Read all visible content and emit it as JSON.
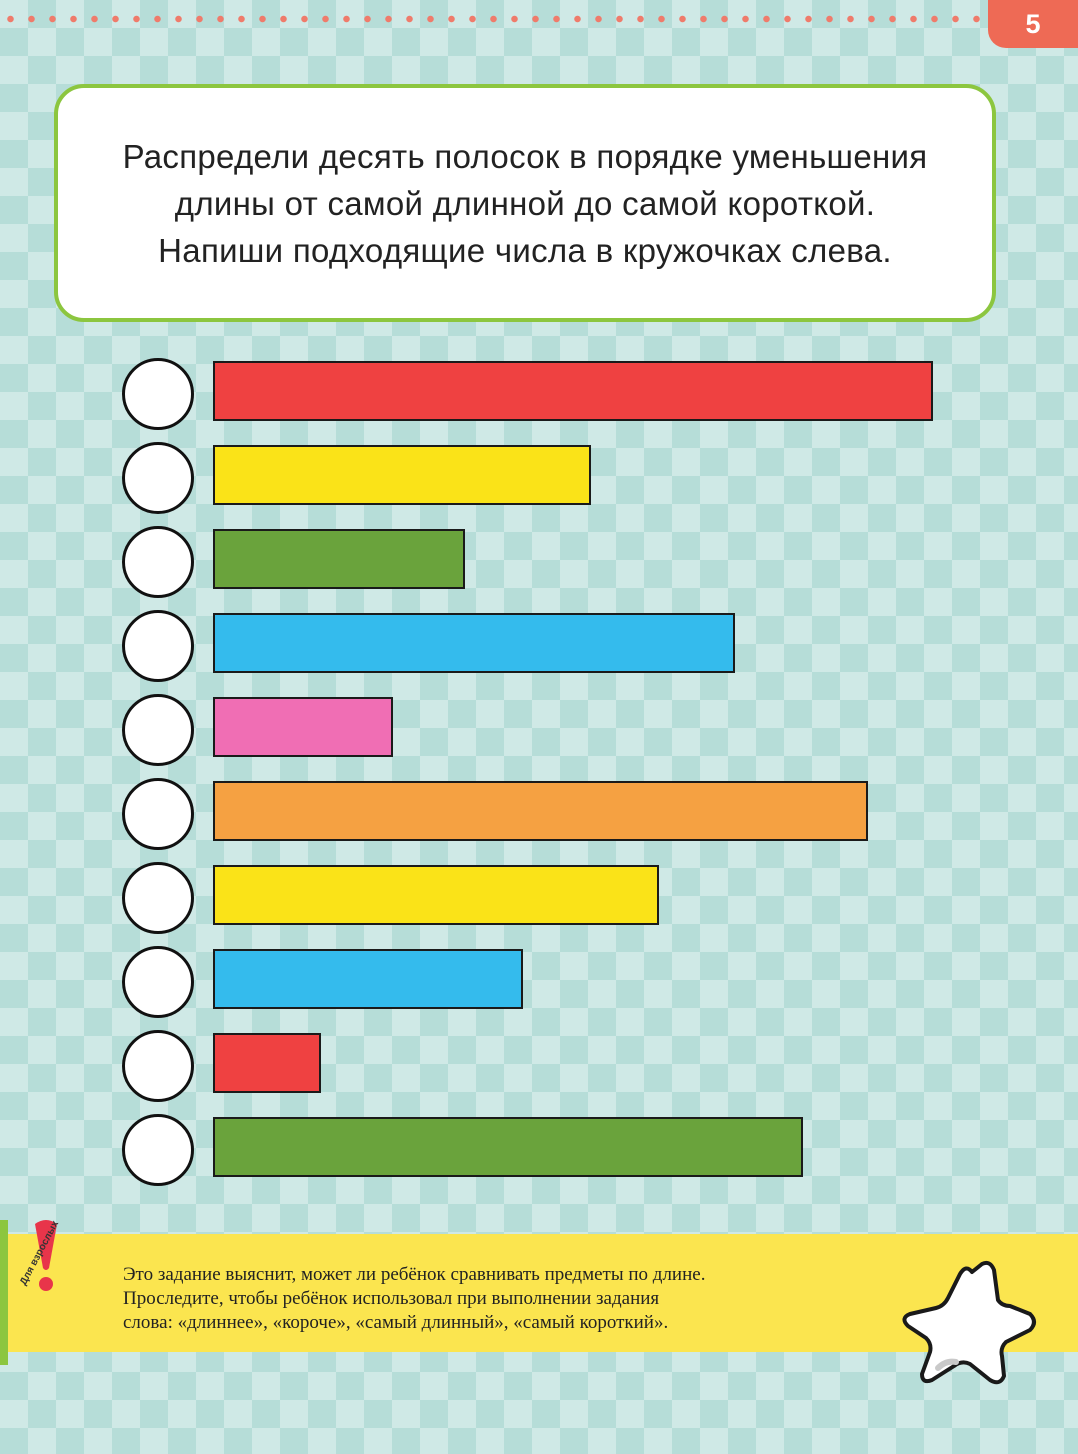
{
  "page_number": "5",
  "instruction": "Распредели десять полосок в порядке уменьшения длины от самой длинной до самой короткой. Напиши подходящие числа в кружочках слева.",
  "strips": [
    {
      "color": "#ef4141",
      "length": 10,
      "number": ""
    },
    {
      "color": "#fae318",
      "length": 5.25,
      "number": ""
    },
    {
      "color": "#6aa33c",
      "length": 3.5,
      "number": ""
    },
    {
      "color": "#34bbed",
      "length": 7.25,
      "number": ""
    },
    {
      "color": "#f06eb4",
      "length": 2.5,
      "number": ""
    },
    {
      "color": "#f5a142",
      "length": 9.1,
      "number": ""
    },
    {
      "color": "#fae318",
      "length": 6.2,
      "number": ""
    },
    {
      "color": "#34bbed",
      "length": 4.3,
      "number": ""
    },
    {
      "color": "#ef4141",
      "length": 1.5,
      "number": ""
    },
    {
      "color": "#6aa33c",
      "length": 8.2,
      "number": ""
    }
  ],
  "adults_note": {
    "label": "Для взрослых",
    "lines": [
      "Это задание выяснит, может ли ребёнок сравнивать предметы по длине.",
      "Проследите, чтобы ребёнок использовал при выполнении задания",
      "слова: «длиннее», «короче», «самый длинный», «самый короткий»."
    ]
  },
  "icons": {
    "exclamation": "exclamation-icon",
    "star": "star-icon"
  }
}
